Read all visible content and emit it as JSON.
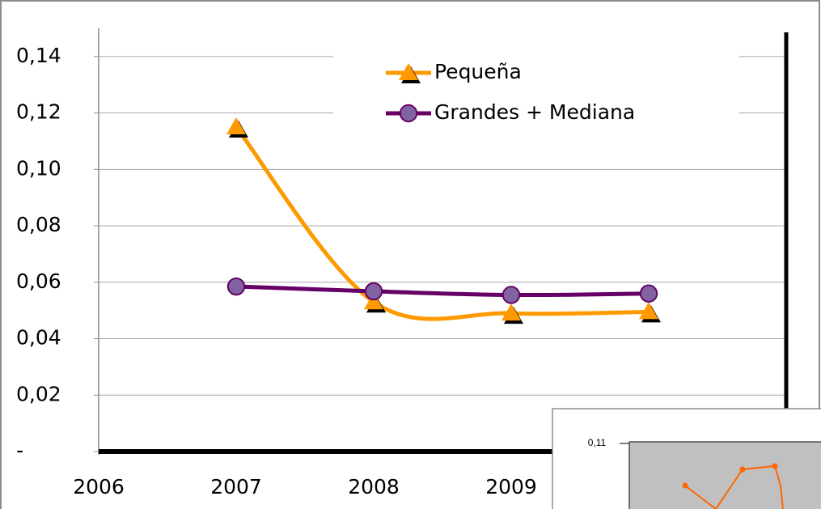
{
  "chart_data": {
    "type": "line",
    "x": [
      2007,
      2008,
      2009,
      2010
    ],
    "series": [
      {
        "name": "Pequeña",
        "color": "#ff9900",
        "marker": "triangle",
        "values": [
          0.115,
          0.053,
          0.049,
          0.0495
        ]
      },
      {
        "name": "Grandes + Mediana",
        "color": "#660066",
        "marker": "circle",
        "values": [
          0.0585,
          0.0568,
          0.0555,
          0.056
        ]
      }
    ],
    "smooth": true,
    "xlim": [
      2006,
      2011
    ],
    "xticks": [
      2006,
      2007,
      2008,
      2009
    ],
    "ylim": [
      0,
      0.15
    ],
    "yticks": [
      {
        "value": 0,
        "label": "-"
      },
      {
        "value": 0.02,
        "label": "0,02"
      },
      {
        "value": 0.04,
        "label": "0,04"
      },
      {
        "value": 0.06,
        "label": "0,06"
      },
      {
        "value": 0.08,
        "label": "0,08"
      },
      {
        "value": 0.1,
        "label": "0,10"
      },
      {
        "value": 0.12,
        "label": "0,12"
      },
      {
        "value": 0.14,
        "label": "0,14"
      }
    ],
    "grid": true,
    "legend": "top"
  },
  "inset": {
    "label": "0,11"
  }
}
